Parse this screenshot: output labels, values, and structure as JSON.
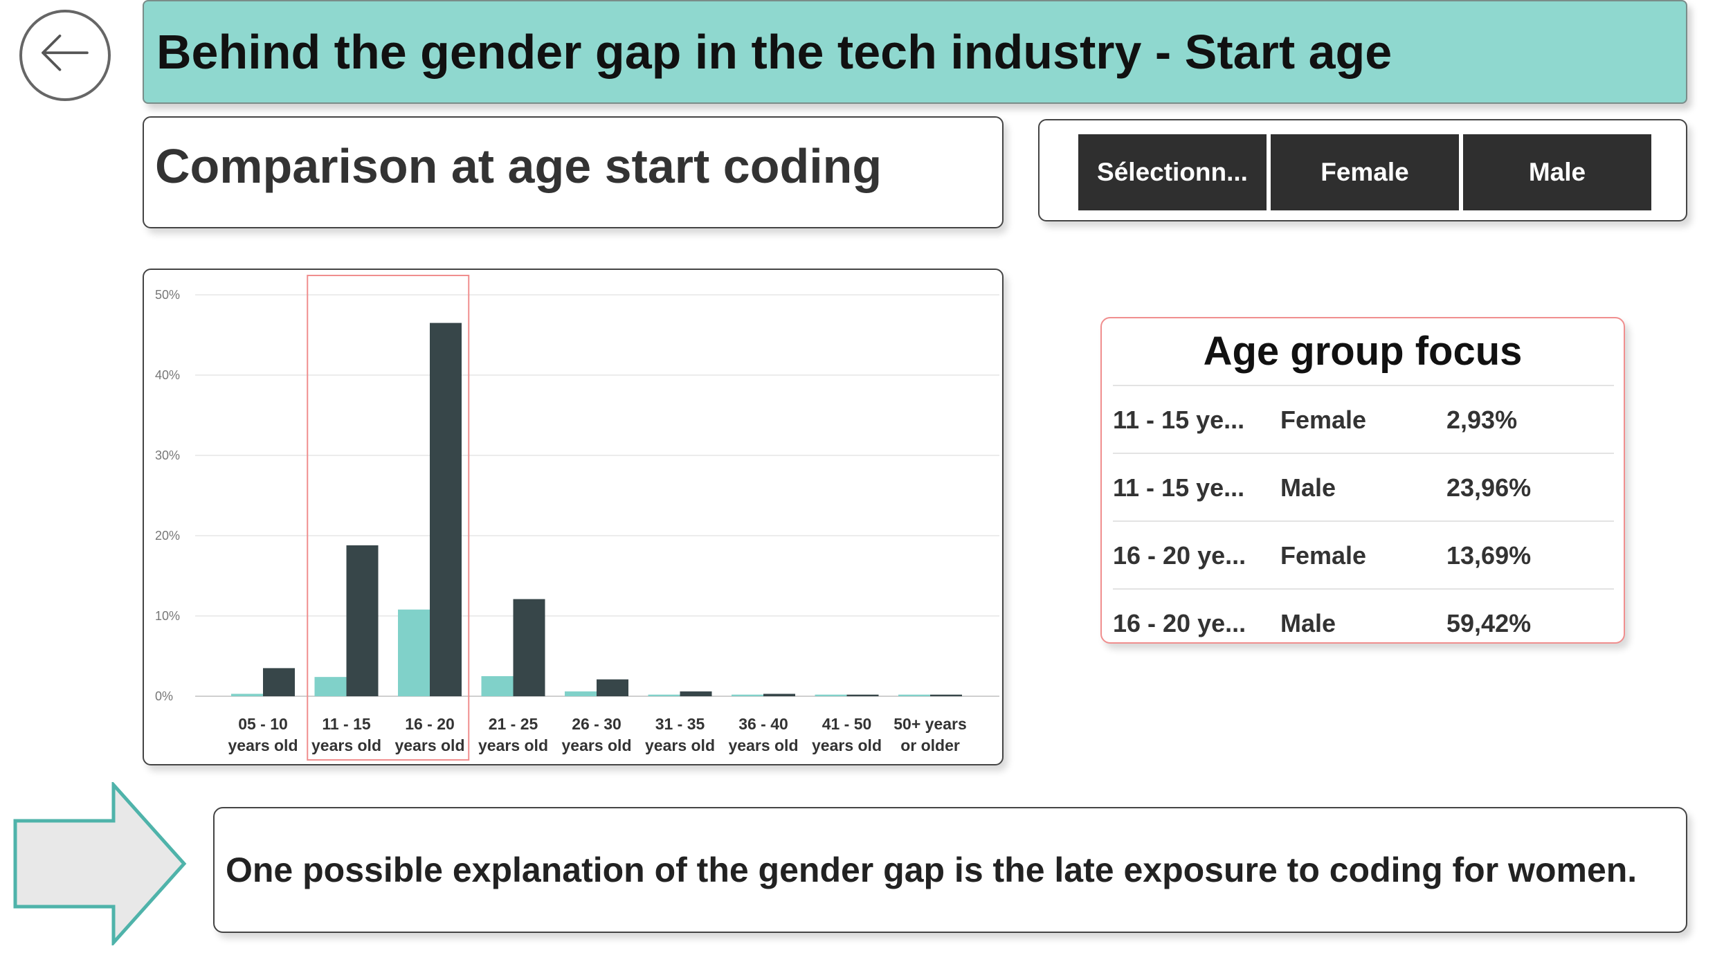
{
  "header": {
    "title": "Behind the gender gap in the tech industry - Start age"
  },
  "subtitle": "Comparison at age start coding",
  "slicer": {
    "options": [
      "Sélectionn...",
      "Female",
      "Male"
    ]
  },
  "chart_data": {
    "type": "bar",
    "categories": [
      [
        "05 - 10",
        "years old"
      ],
      [
        "11 - 15",
        "years old"
      ],
      [
        "16 - 20",
        "years old"
      ],
      [
        "21 - 25",
        "years old"
      ],
      [
        "26 - 30",
        "years old"
      ],
      [
        "31 - 35",
        "years old"
      ],
      [
        "36 - 40",
        "years old"
      ],
      [
        "41 - 50",
        "years old"
      ],
      [
        "50+ years",
        "or older"
      ]
    ],
    "series": [
      {
        "values": [
          0.3,
          2.4,
          10.8,
          2.5,
          0.6,
          0.2,
          0.2,
          0.2,
          0.2
        ],
        "color": "#80d1c9"
      },
      {
        "values": [
          3.5,
          18.8,
          46.5,
          12.1,
          2.1,
          0.6,
          0.3,
          0.2,
          0.2
        ],
        "color": "#374649"
      }
    ],
    "y_ticks": [
      "0%",
      "10%",
      "20%",
      "30%",
      "40%",
      "50%"
    ],
    "ylim": [
      0,
      50
    ],
    "highlighted_categories": [
      1,
      2
    ],
    "grid": true
  },
  "focus": {
    "title": "Age group focus",
    "rows": [
      {
        "age": "11 - 15 ye...",
        "gender": "Female",
        "value": "2,93%"
      },
      {
        "age": "11 - 15 ye...",
        "gender": "Male",
        "value": "23,96%"
      },
      {
        "age": "16 - 20 ye...",
        "gender": "Female",
        "value": "13,69%"
      },
      {
        "age": "16 - 20 ye...",
        "gender": "Male",
        "value": "59,42%"
      }
    ]
  },
  "note": "One possible explanation of the gender gap is the late exposure to coding for women.",
  "icons": {
    "back": "arrow-left-icon",
    "callout": "arrow-right-icon"
  },
  "colors": {
    "accent": "#8fd8cf",
    "dark": "#2f2f2f",
    "female": "#80d1c9",
    "male": "#374649",
    "highlight": "#f08e8e"
  }
}
